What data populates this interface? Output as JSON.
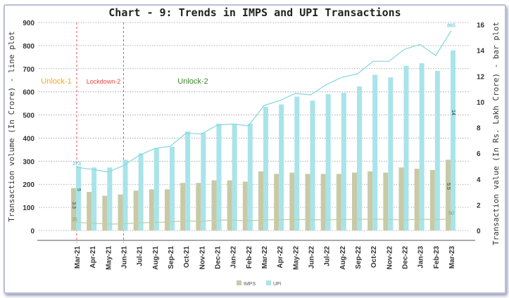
{
  "chart_data": {
    "type": "bar+line",
    "title": "Chart - 9: Trends in IMPS and UPI Transactions",
    "ylabel_left": "Transaction volume (In Crore) - line plot",
    "ylabel_right": "Transaction value (In Rs. Lakh Crore) - bar plot",
    "ylim_left": [
      0,
      900
    ],
    "yticks_left": [
      0,
      100,
      200,
      300,
      400,
      500,
      600,
      700,
      800,
      900
    ],
    "ylim_right": [
      0,
      16
    ],
    "yticks_right": [
      0,
      2,
      4,
      6,
      8,
      10,
      12,
      14,
      16
    ],
    "grid": true,
    "legend_position": "bottom",
    "categories": [
      "Mar-21",
      "Apr-21",
      "May-21",
      "Jun-21",
      "Jul-21",
      "Aug-21",
      "Sep-21",
      "Oct-21",
      "Nov-21",
      "Dec-21",
      "Jan-22",
      "Feb-22",
      "Mar-22",
      "Apr-22",
      "May-22",
      "Jun-22",
      "Jul-22",
      "Aug-22",
      "Sep-22",
      "Oct-22",
      "Nov-22",
      "Dec-22",
      "Jan-23",
      "Feb-23",
      "Mar-23"
    ],
    "bar_series": [
      {
        "name": "IMPS",
        "color": "#c9c9a6",
        "values": [
          3.3,
          3.0,
          2.7,
          2.8,
          3.1,
          3.2,
          3.2,
          3.7,
          3.7,
          3.9,
          3.9,
          3.8,
          4.6,
          4.4,
          4.5,
          4.4,
          4.4,
          4.4,
          4.5,
          4.6,
          4.5,
          4.9,
          4.8,
          4.7,
          5.5
        ]
      },
      {
        "name": "UPI",
        "color": "#a8e4ea",
        "values": [
          5.0,
          4.9,
          4.9,
          5.5,
          6.0,
          6.4,
          6.5,
          7.7,
          7.6,
          8.3,
          8.3,
          8.3,
          9.6,
          9.8,
          10.4,
          10.1,
          10.6,
          10.7,
          11.2,
          12.1,
          11.9,
          12.8,
          13.0,
          12.4,
          14.0
        ]
      }
    ],
    "line_series": [
      {
        "color": "#c2cfa8",
        "values": [
          35,
          32,
          28,
          29,
          33,
          35,
          37,
          42,
          40,
          45,
          45,
          42,
          46,
          47,
          48,
          47,
          46,
          48,
          48,
          49,
          48,
          46,
          49,
          47,
          50
        ]
      },
      {
        "color": "#8ad8e0",
        "values": [
          273,
          265,
          253,
          281,
          325,
          355,
          365,
          421,
          418,
          456,
          461,
          453,
          541,
          562,
          593,
          587,
          632,
          663,
          678,
          732,
          732,
          784,
          805,
          757,
          865
        ]
      }
    ],
    "data_labels": {
      "upi_line_first": "273",
      "upi_line_last": "865",
      "imps_line_first": "35",
      "imps_line_last": "50",
      "upi_bar_first": "5",
      "upi_bar_last": "14",
      "imps_bar_first": "3.3",
      "imps_bar_last": "5.5"
    },
    "annotations": [
      {
        "text": "Unlock-1",
        "color": "#f5a623"
      },
      {
        "text": "Lockdown-2",
        "color": "#e8453c"
      },
      {
        "text": "Unlock-2",
        "color": "#3a8a2a"
      }
    ],
    "event_lines": [
      "Mar-21",
      "Jun-21"
    ],
    "event_line_color": "#f05050"
  }
}
